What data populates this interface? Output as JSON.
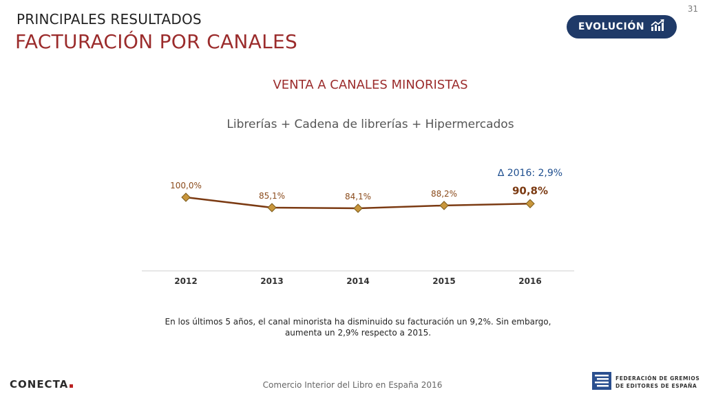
{
  "page": {
    "number": "31",
    "section": "PRINCIPALES RESULTADOS",
    "title": "FACTURACIÓN POR CANALES"
  },
  "badge": {
    "label": "EVOLUCIÓN",
    "icon": "trend-up-icon",
    "color": "#1f3a68"
  },
  "chart_data": {
    "type": "line",
    "title": "VENTA A CANALES MINORISTAS",
    "subtitle": "Librerías + Cadena de librerías + Hipermercados",
    "categories": [
      "2012",
      "2013",
      "2014",
      "2015",
      "2016"
    ],
    "series": [
      {
        "values": [
          100.0,
          85.1,
          84.1,
          88.2,
          90.8
        ],
        "labels": [
          "100,0%",
          "85,1%",
          "84,1%",
          "88,2%",
          "90,8%"
        ],
        "color": "#7b3a12",
        "marker_color": "#c8963c"
      }
    ],
    "annotation": "∆ 2016:  2,9%",
    "xlabel": "",
    "ylabel": "",
    "ylim": [
      0,
      110
    ],
    "grid": false
  },
  "footnote": {
    "line1": "En los últimos 5 años, el canal minorista ha disminuido su facturación un 9,2%. Sin embargo,",
    "line2": "aumenta un 2,9% respecto a 2015."
  },
  "source": "Comercio Interior del Libro en España 2016",
  "logos": {
    "conecta": "CONECTA",
    "fgee_line1": "FEDERACIÓN DE GREMIOS",
    "fgee_line2": "DE EDITORES DE ESPAÑA"
  }
}
